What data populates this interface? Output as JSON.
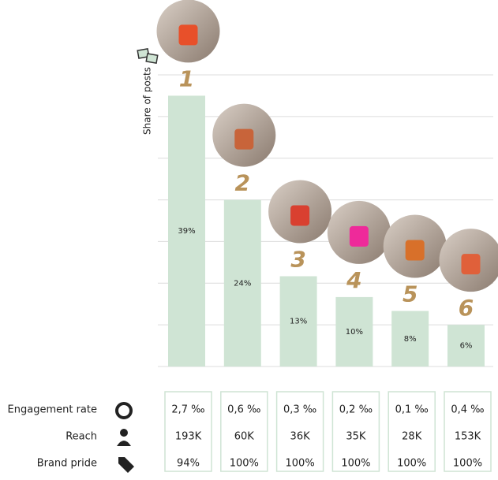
{
  "chart_data": {
    "type": "bar",
    "y_label": "Share of posts",
    "categories": [
      "1",
      "2",
      "3",
      "4",
      "5",
      "6"
    ],
    "values": [
      39,
      24,
      13,
      10,
      8,
      6
    ],
    "value_labels": [
      "39%",
      "24%",
      "13%",
      "10%",
      "8%",
      "6%"
    ],
    "color": "#cfe4d4",
    "ylim": [
      0,
      42
    ],
    "yticks": [
      0,
      6,
      12,
      18,
      24,
      30,
      36,
      42
    ],
    "grid": true,
    "metrics": [
      {
        "name": "Engagement rate",
        "values": [
          "2,7 ‰",
          "0,6 ‰",
          "0,3 ‰",
          "0,2 ‰",
          "0,1 ‰",
          "0,4 ‰"
        ]
      },
      {
        "name": "Reach",
        "values": [
          "193K",
          "60K",
          "36K",
          "35K",
          "28K",
          "153K"
        ]
      },
      {
        "name": "Brand pride",
        "values": [
          "94%",
          "100%",
          "100%",
          "100%",
          "100%",
          "100%"
        ]
      }
    ]
  }
}
